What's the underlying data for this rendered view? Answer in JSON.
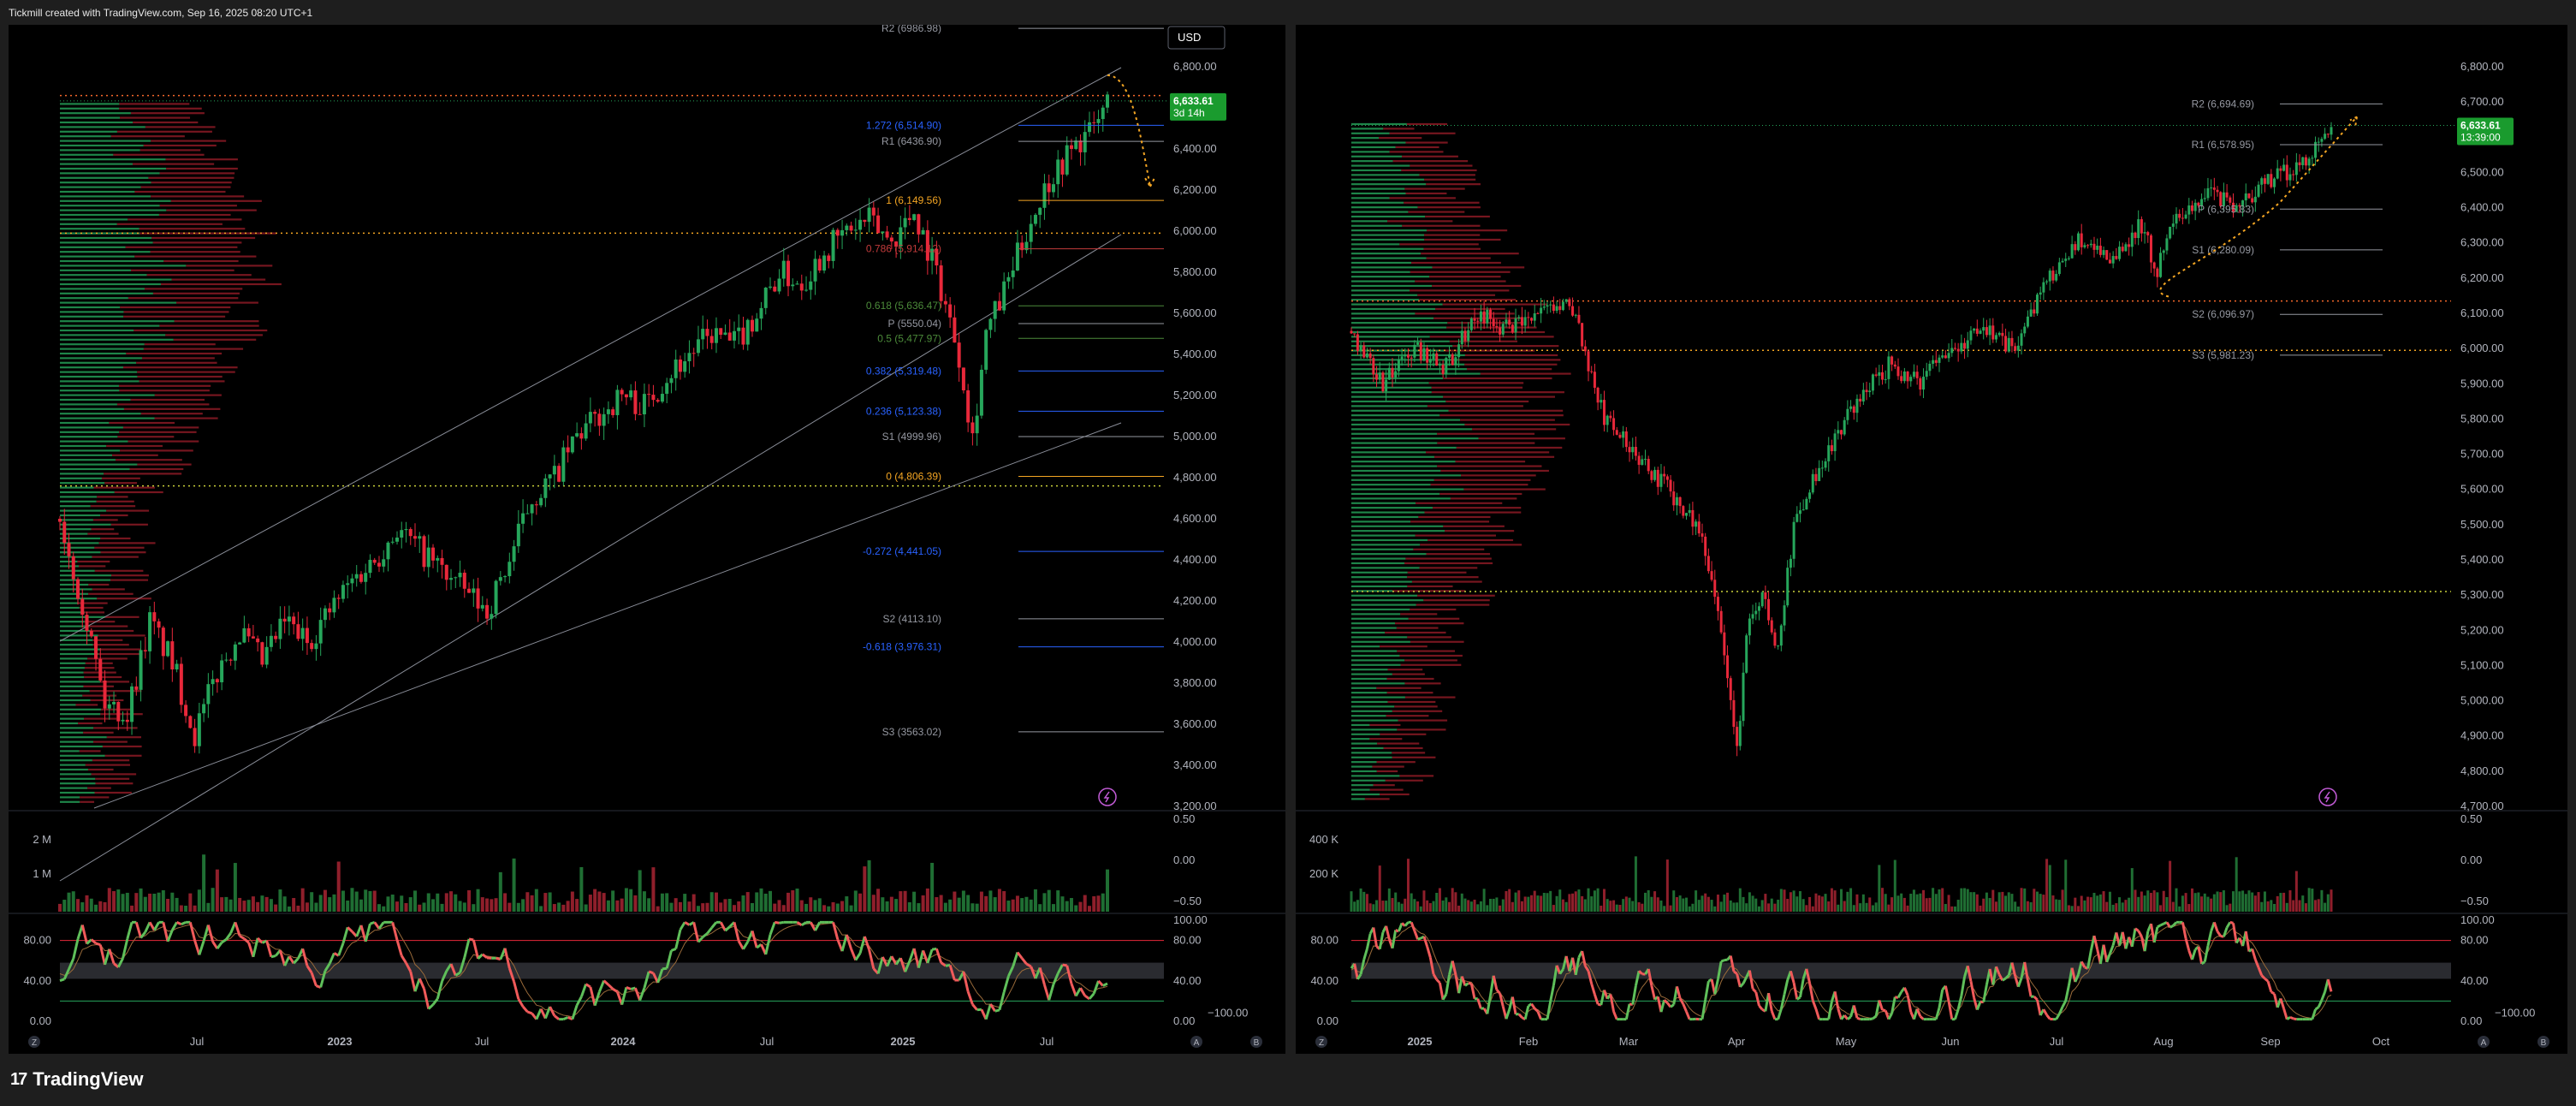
{
  "header": {
    "caption": "Tickmill created with TradingView.com, Sep 16, 2025 08:20 UTC+1"
  },
  "footer": {
    "brand": "TradingView",
    "logo_mark": "17"
  },
  "colors": {
    "up": "#26a65b",
    "down": "#e8283a",
    "bg": "#000000",
    "axis_text": "#b2b5be",
    "fib": "#f5a623",
    "fib_blue": "#2962ff",
    "pivot": "#9598a1"
  },
  "left": {
    "currency": "USD",
    "price": {
      "value": "6,633.61",
      "countdown": "3d 14h"
    },
    "price_axis": [
      "6,800.00",
      "6,600.00",
      "6,400.00",
      "6,200.00",
      "6,000.00",
      "5,800.00",
      "5,600.00",
      "5,400.00",
      "5,200.00",
      "5,000.00",
      "4,800.00",
      "4,600.00",
      "4,400.00",
      "4,200.00",
      "4,000.00",
      "3,800.00",
      "3,600.00",
      "3,400.00",
      "3,200.00"
    ],
    "time_axis": [
      "Jul",
      "2023",
      "Jul",
      "2024",
      "Jul",
      "2025",
      "Jul"
    ],
    "levels": [
      {
        "label": "R2 (6986.98)",
        "price": 6986.98,
        "kind": "pivot"
      },
      {
        "label": "1.272 (6,514.90)",
        "price": 6514.9,
        "kind": "fib_blue"
      },
      {
        "label": "R1 (6436.90)",
        "price": 6436.9,
        "kind": "pivot"
      },
      {
        "label": "1 (6,149.56)",
        "price": 6149.56,
        "kind": "fib"
      },
      {
        "label": "0.786 (5,914.12)",
        "price": 5914.12,
        "kind": "fib_red"
      },
      {
        "label": "0.618 (5,636.47)",
        "price": 5636.47,
        "kind": "fib_green"
      },
      {
        "label": "P (5550.04)",
        "price": 5550.04,
        "kind": "pivot"
      },
      {
        "label": "0.5 (5,477.97)",
        "price": 5477.97,
        "kind": "fib_green"
      },
      {
        "label": "0.382 (5,319.48)",
        "price": 5319.48,
        "kind": "fib_blue"
      },
      {
        "label": "0.236 (5,123.38)",
        "price": 5123.38,
        "kind": "fib_blue"
      },
      {
        "label": "S1 (4999.96)",
        "price": 4999.96,
        "kind": "pivot"
      },
      {
        "label": "0 (4,806.39)",
        "price": 4806.39,
        "kind": "fib"
      },
      {
        "label": "-0.272 (4,441.05)",
        "price": 4441.05,
        "kind": "fib_blue"
      },
      {
        "label": "S2 (4113.10)",
        "price": 4113.1,
        "kind": "pivot"
      },
      {
        "label": "-0.618 (3,976.31)",
        "price": 3976.31,
        "kind": "fib_blue"
      },
      {
        "label": "S3 (3563.02)",
        "price": 3563.02,
        "kind": "pivot"
      }
    ],
    "volume_axis": [
      "2 M",
      "1 M"
    ],
    "osc_axis_left": [
      "80.00",
      "40.00",
      "0.00"
    ],
    "osc_axis_right": [
      "0.50",
      "0.00",
      "−0.50",
      "100.00",
      "80.00",
      "40.00",
      "−100.00",
      "0.00"
    ]
  },
  "right": {
    "price": {
      "value": "6,633.61",
      "countdown": "13:39:00"
    },
    "price_axis": [
      "6,800.00",
      "6,700.00",
      "6,600.00",
      "6,500.00",
      "6,400.00",
      "6,300.00",
      "6,200.00",
      "6,100.00",
      "6,000.00",
      "5,900.00",
      "5,800.00",
      "5,700.00",
      "5,600.00",
      "5,500.00",
      "5,400.00",
      "5,300.00",
      "5,200.00",
      "5,100.00",
      "5,000.00",
      "4,900.00",
      "4,800.00",
      "4,700.00"
    ],
    "time_axis": [
      "2025",
      "Feb",
      "Mar",
      "Apr",
      "May",
      "Jun",
      "Jul",
      "Aug",
      "Sep",
      "Oct"
    ],
    "levels": [
      {
        "label": "R2 (6,694.69)",
        "price": 6694.69
      },
      {
        "label": "R1 (6,578.95)",
        "price": 6578.95
      },
      {
        "label": "P (6,395.83)",
        "price": 6395.83
      },
      {
        "label": "S1 (6,280.09)",
        "price": 6280.09
      },
      {
        "label": "S2 (6,096.97)",
        "price": 6096.97
      },
      {
        "label": "S3 (5,981.23)",
        "price": 5981.23
      }
    ],
    "volume_axis": [
      "400 K",
      "200 K"
    ],
    "osc_axis_left": [
      "80.00",
      "40.00",
      "0.00"
    ],
    "osc_axis_right": [
      "0.50",
      "0.00",
      "−0.50",
      "100.00",
      "80.00",
      "40.00",
      "−100.00",
      "0.00"
    ]
  },
  "corner_labels": {
    "z": "Z",
    "a": "A",
    "b": "B"
  },
  "chart_data": [
    {
      "type": "candlestick",
      "title": "",
      "timeframe": "weekly",
      "x_range": [
        "2022-04",
        "2025-09"
      ],
      "ylim": [
        3200,
        6800
      ],
      "last_price": 6633.61,
      "path": [
        [
          0,
          4600
        ],
        [
          5,
          4200
        ],
        [
          10,
          3700
        ],
        [
          15,
          3650
        ],
        [
          20,
          4100
        ],
        [
          25,
          3900
        ],
        [
          30,
          3550
        ],
        [
          35,
          3850
        ],
        [
          40,
          4050
        ],
        [
          45,
          3900
        ],
        [
          50,
          4100
        ],
        [
          55,
          4000
        ],
        [
          60,
          4150
        ],
        [
          65,
          4300
        ],
        [
          70,
          4400
        ],
        [
          75,
          4550
        ],
        [
          80,
          4450
        ],
        [
          85,
          4350
        ],
        [
          90,
          4250
        ],
        [
          95,
          4150
        ],
        [
          100,
          4400
        ],
        [
          105,
          4700
        ],
        [
          110,
          4800
        ],
        [
          115,
          5000
        ],
        [
          120,
          5100
        ],
        [
          125,
          5200
        ],
        [
          130,
          5150
        ],
        [
          135,
          5300
        ],
        [
          140,
          5400
        ],
        [
          145,
          5500
        ],
        [
          150,
          5450
        ],
        [
          155,
          5600
        ],
        [
          160,
          5800
        ],
        [
          165,
          5750
        ],
        [
          170,
          5900
        ],
        [
          175,
          6000
        ],
        [
          180,
          6050
        ],
        [
          185,
          5950
        ],
        [
          190,
          6100
        ],
        [
          195,
          5800
        ],
        [
          200,
          5400
        ],
        [
          203,
          5000
        ],
        [
          206,
          5500
        ],
        [
          210,
          5700
        ],
        [
          215,
          6000
        ],
        [
          220,
          6250
        ],
        [
          225,
          6400
        ],
        [
          230,
          6500
        ],
        [
          233,
          6633
        ]
      ],
      "volume_note": "weekly volume bars (M)",
      "oscillator_range": [
        0,
        100
      ]
    },
    {
      "type": "candlestick",
      "title": "",
      "timeframe": "daily",
      "x_range": [
        "2024-12",
        "2025-09"
      ],
      "ylim": [
        4700,
        6800
      ],
      "last_price": 6633.61,
      "path": [
        [
          0,
          6050
        ],
        [
          10,
          5900
        ],
        [
          20,
          6000
        ],
        [
          30,
          5950
        ],
        [
          40,
          6100
        ],
        [
          50,
          6050
        ],
        [
          60,
          6100
        ],
        [
          70,
          6120
        ],
        [
          75,
          5950
        ],
        [
          80,
          5800
        ],
        [
          90,
          5700
        ],
        [
          100,
          5600
        ],
        [
          110,
          5500
        ],
        [
          115,
          5300
        ],
        [
          120,
          5000
        ],
        [
          122,
          4850
        ],
        [
          125,
          5200
        ],
        [
          130,
          5300
        ],
        [
          135,
          5150
        ],
        [
          140,
          5500
        ],
        [
          150,
          5700
        ],
        [
          160,
          5850
        ],
        [
          170,
          5950
        ],
        [
          180,
          5900
        ],
        [
          190,
          6000
        ],
        [
          200,
          6050
        ],
        [
          210,
          6000
        ],
        [
          220,
          6200
        ],
        [
          230,
          6300
        ],
        [
          240,
          6250
        ],
        [
          250,
          6350
        ],
        [
          255,
          6220
        ],
        [
          260,
          6350
        ],
        [
          270,
          6450
        ],
        [
          280,
          6400
        ],
        [
          290,
          6480
        ],
        [
          300,
          6520
        ],
        [
          310,
          6633
        ]
      ],
      "volume_note": "daily volume bars (K)",
      "oscillator_range": [
        0,
        100
      ]
    }
  ]
}
